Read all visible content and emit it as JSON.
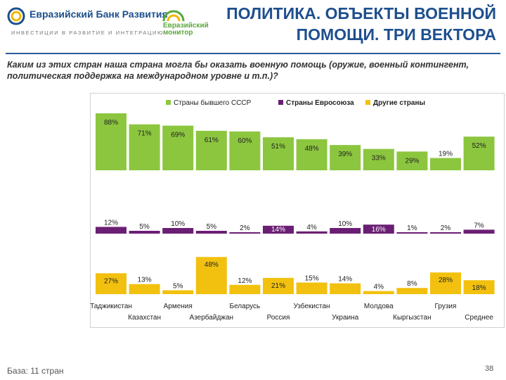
{
  "header": {
    "bank_name": "Евразийский Банк Развития",
    "bank_tagline": "ИНВЕСТИЦИИ В РАЗВИТИЕ И ИНТЕГРАЦИЮ",
    "monitor_line1": "Евразийский",
    "monitor_line2": "монитор",
    "title_line1": "ПОЛИТИКА. ОБЪЕКТЫ ВОЕННОЙ",
    "title_line2": "ПОМОЩИ. ТРИ ВЕКТОРА"
  },
  "question": "Каким из этих стран наша страна могла бы оказать военную помощь (оружие, военный контингент, политическая поддержка на международном уровне и т.п.)?",
  "footer": {
    "base": "База: 11 стран",
    "page": "38"
  },
  "colors": {
    "green": "#8cc63f",
    "purple": "#6b1f74",
    "yellow": "#f2c10f",
    "title_blue": "#1e4f8e"
  },
  "chart_data": {
    "type": "bar",
    "categories": [
      "Таджикистан",
      "Казахстан",
      "Армения",
      "Азербайджан",
      "Беларусь",
      "Россия",
      "Узбекистан",
      "Украина",
      "Молдова",
      "Кыргызстан",
      "Грузия",
      "Среднее"
    ],
    "series": [
      {
        "name": "Страны бывшего СССР",
        "color": "#8cc63f",
        "values": [
          88,
          71,
          69,
          61,
          60,
          51,
          48,
          39,
          33,
          29,
          19,
          52
        ]
      },
      {
        "name": "Страны Евросоюза",
        "color": "#6b1f74",
        "values": [
          12,
          5,
          10,
          5,
          2,
          14,
          4,
          10,
          16,
          1,
          2,
          7
        ]
      },
      {
        "name": "Другие страны",
        "color": "#f2c10f",
        "values": [
          27,
          13,
          5,
          48,
          12,
          21,
          15,
          14,
          4,
          8,
          28,
          18
        ]
      }
    ],
    "unit": "%",
    "legend_position": "top"
  }
}
